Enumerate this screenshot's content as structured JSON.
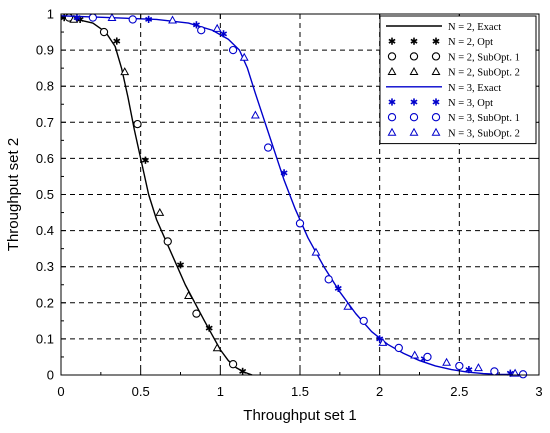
{
  "chart_data": {
    "type": "line",
    "title": "",
    "xlabel": "Throughput set 1",
    "ylabel": "Throughput set 2",
    "xlim": [
      0,
      3
    ],
    "ylim": [
      0,
      1
    ],
    "xticks": [
      "0",
      "0.5",
      "1",
      "1.5",
      "2",
      "2.5",
      "3"
    ],
    "yticks": [
      "0",
      "0.1",
      "0.2",
      "0.3",
      "0.4",
      "0.5",
      "0.6",
      "0.7",
      "0.8",
      "0.9",
      "1"
    ],
    "grid": true,
    "legend_position": "top-right",
    "series": [
      {
        "name": "N = 2, Exact",
        "color": "#000000",
        "marker": "line",
        "x": [
          0.0,
          0.1,
          0.2,
          0.28,
          0.34,
          0.38,
          0.42,
          0.46,
          0.5,
          0.55,
          0.6,
          0.66,
          0.72,
          0.78,
          0.84,
          0.9,
          0.95,
          1.0,
          1.05,
          1.1,
          1.15,
          1.2
        ],
        "y": [
          0.99,
          0.985,
          0.975,
          0.95,
          0.91,
          0.85,
          0.77,
          0.68,
          0.6,
          0.5,
          0.43,
          0.37,
          0.31,
          0.25,
          0.2,
          0.15,
          0.11,
          0.07,
          0.04,
          0.02,
          0.008,
          0.0
        ]
      },
      {
        "name": "N = 2, Opt",
        "color": "#000000",
        "marker": "asterisk",
        "x": [
          0.02,
          0.12,
          0.35,
          0.53,
          0.75,
          0.93,
          1.14
        ],
        "y": [
          0.99,
          0.985,
          0.925,
          0.595,
          0.305,
          0.13,
          0.01
        ]
      },
      {
        "name": "N = 2, SubOpt. 1",
        "color": "#000000",
        "marker": "circle",
        "x": [
          0.05,
          0.27,
          0.48,
          0.67,
          0.85,
          1.08
        ],
        "y": [
          0.99,
          0.95,
          0.695,
          0.37,
          0.17,
          0.03
        ]
      },
      {
        "name": "N = 2, SubOpt. 2",
        "color": "#000000",
        "marker": "triangle",
        "x": [
          0.08,
          0.4,
          0.62,
          0.8,
          0.98
        ],
        "y": [
          0.985,
          0.84,
          0.45,
          0.22,
          0.075
        ]
      },
      {
        "name": "N = 3, Exact",
        "color": "#0000cc",
        "marker": "line",
        "x": [
          0.0,
          0.3,
          0.6,
          0.8,
          0.95,
          1.05,
          1.12,
          1.17,
          1.22,
          1.28,
          1.34,
          1.4,
          1.47,
          1.55,
          1.65,
          1.75,
          1.85,
          1.95,
          2.05,
          2.15,
          2.25,
          2.35,
          2.45,
          2.55,
          2.65,
          2.75,
          2.85,
          2.92
        ],
        "y": [
          0.995,
          0.99,
          0.985,
          0.975,
          0.955,
          0.93,
          0.9,
          0.85,
          0.78,
          0.7,
          0.62,
          0.54,
          0.46,
          0.38,
          0.3,
          0.23,
          0.17,
          0.12,
          0.085,
          0.06,
          0.04,
          0.025,
          0.015,
          0.008,
          0.004,
          0.002,
          0.001,
          0.0
        ]
      },
      {
        "name": "N = 3, Opt",
        "color": "#0000cc",
        "marker": "asterisk",
        "x": [
          0.1,
          0.55,
          0.85,
          1.02,
          1.4,
          1.74,
          2.0,
          2.28,
          2.56,
          2.82
        ],
        "y": [
          0.99,
          0.985,
          0.97,
          0.945,
          0.56,
          0.24,
          0.1,
          0.045,
          0.015,
          0.005
        ]
      },
      {
        "name": "N = 3, SubOpt. 1",
        "color": "#0000cc",
        "marker": "circle",
        "x": [
          0.2,
          0.45,
          0.88,
          1.08,
          1.3,
          1.5,
          1.68,
          1.9,
          2.12,
          2.3,
          2.5,
          2.72,
          2.9
        ],
        "y": [
          0.99,
          0.985,
          0.955,
          0.9,
          0.63,
          0.42,
          0.265,
          0.15,
          0.075,
          0.05,
          0.025,
          0.01,
          0.002
        ]
      },
      {
        "name": "N = 3, SubOpt. 2",
        "color": "#0000cc",
        "marker": "triangle",
        "x": [
          0.32,
          0.7,
          0.98,
          1.15,
          1.22,
          1.6,
          1.8,
          2.02,
          2.22,
          2.42,
          2.62,
          2.85
        ],
        "y": [
          0.99,
          0.983,
          0.96,
          0.88,
          0.72,
          0.34,
          0.19,
          0.09,
          0.055,
          0.035,
          0.02,
          0.005
        ]
      }
    ]
  }
}
